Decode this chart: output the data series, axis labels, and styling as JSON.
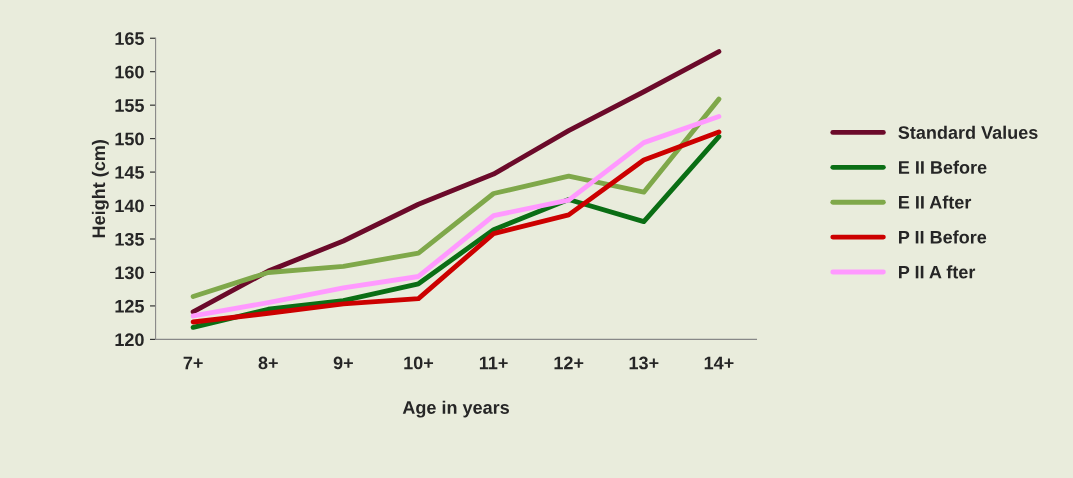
{
  "chart_data": {
    "type": "line",
    "xlabel": "Age in years",
    "ylabel": "Height (cm)",
    "categories": [
      "7+",
      "8+",
      "9+",
      "10+",
      "11+",
      "12+",
      "13+",
      "14+"
    ],
    "series": [
      {
        "name": "Standard Values",
        "color": "#6b0a2a",
        "values": [
          124.1,
          130.2,
          134.7,
          140.2,
          144.7,
          151.2,
          157,
          163
        ]
      },
      {
        "name": "E II Before",
        "color": "#0a6e14",
        "values": [
          121.8,
          124.5,
          125.8,
          128.3,
          136.4,
          140.9,
          137.6,
          150.3
        ]
      },
      {
        "name": "E II After",
        "color": "#7fa84a",
        "values": [
          126.4,
          130,
          130.9,
          132.9,
          141.8,
          144.4,
          142,
          155.9
        ]
      },
      {
        "name": "P II Before",
        "color": "#cc0000",
        "values": [
          122.6,
          123.9,
          125.3,
          126.1,
          135.8,
          138.6,
          146.8,
          151
        ]
      },
      {
        "name": "P II A fter",
        "color": "#ff99ff",
        "values": [
          123.5,
          125.5,
          127.7,
          129.4,
          138.5,
          140.8,
          149.4,
          153.3
        ]
      }
    ],
    "ylim": [
      120,
      165
    ],
    "yticks": [
      120,
      125,
      130,
      135,
      140,
      145,
      150,
      155,
      160,
      165
    ],
    "grid": false,
    "legend": "right",
    "marker": "none",
    "line_style": "solid"
  }
}
